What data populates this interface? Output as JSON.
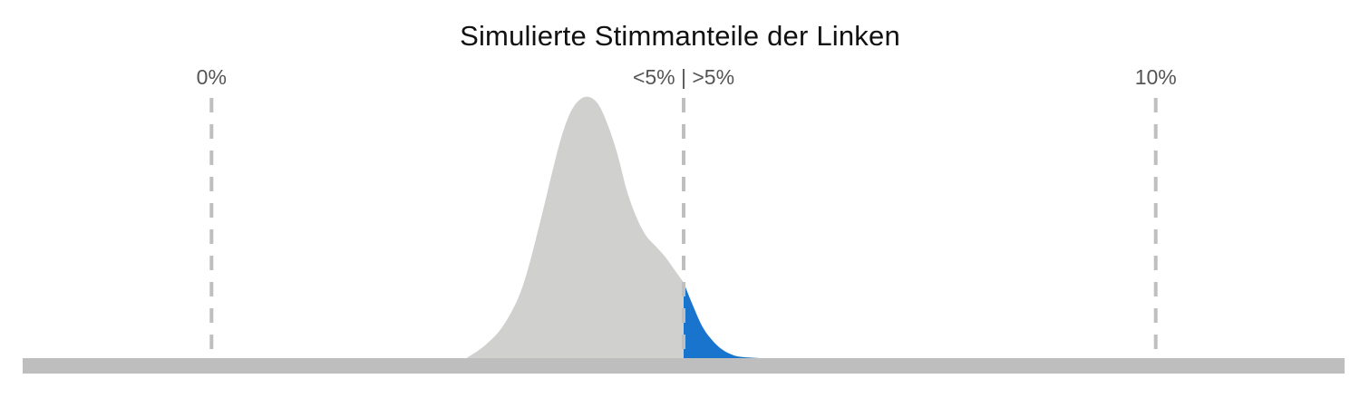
{
  "chart_data": {
    "type": "area",
    "title": "Simulierte Stimmanteile der Linken",
    "xlabel": "",
    "ylabel": "",
    "xlim": [
      -2,
      12
    ],
    "x_ticks": [
      {
        "value": 0,
        "label": "0%"
      },
      {
        "value": 5,
        "label": "<5% | >5%"
      },
      {
        "value": 10,
        "label": "10%"
      }
    ],
    "threshold": 5,
    "grid": false,
    "legend": "none",
    "colors": {
      "below_threshold": "#d0d0cf",
      "above_threshold": "#1874cd",
      "guide_lines": "#bfbfbf",
      "baseline": "#bebebe"
    },
    "series": [
      {
        "x": [
          2.7,
          2.9,
          3.1,
          3.3,
          3.5,
          3.6,
          3.7,
          3.8,
          3.9,
          4.0,
          4.1,
          4.2,
          4.3,
          4.4,
          4.5,
          4.6,
          4.7,
          4.8,
          4.9,
          5.0,
          5.1,
          5.2,
          5.3,
          5.4,
          5.5,
          5.6,
          5.8
        ],
        "y": [
          0.0,
          0.05,
          0.13,
          0.28,
          0.55,
          0.7,
          0.84,
          0.94,
          0.99,
          1.0,
          0.97,
          0.89,
          0.78,
          0.64,
          0.54,
          0.47,
          0.43,
          0.39,
          0.34,
          0.29,
          0.2,
          0.12,
          0.07,
          0.035,
          0.015,
          0.005,
          0.0
        ]
      }
    ]
  }
}
